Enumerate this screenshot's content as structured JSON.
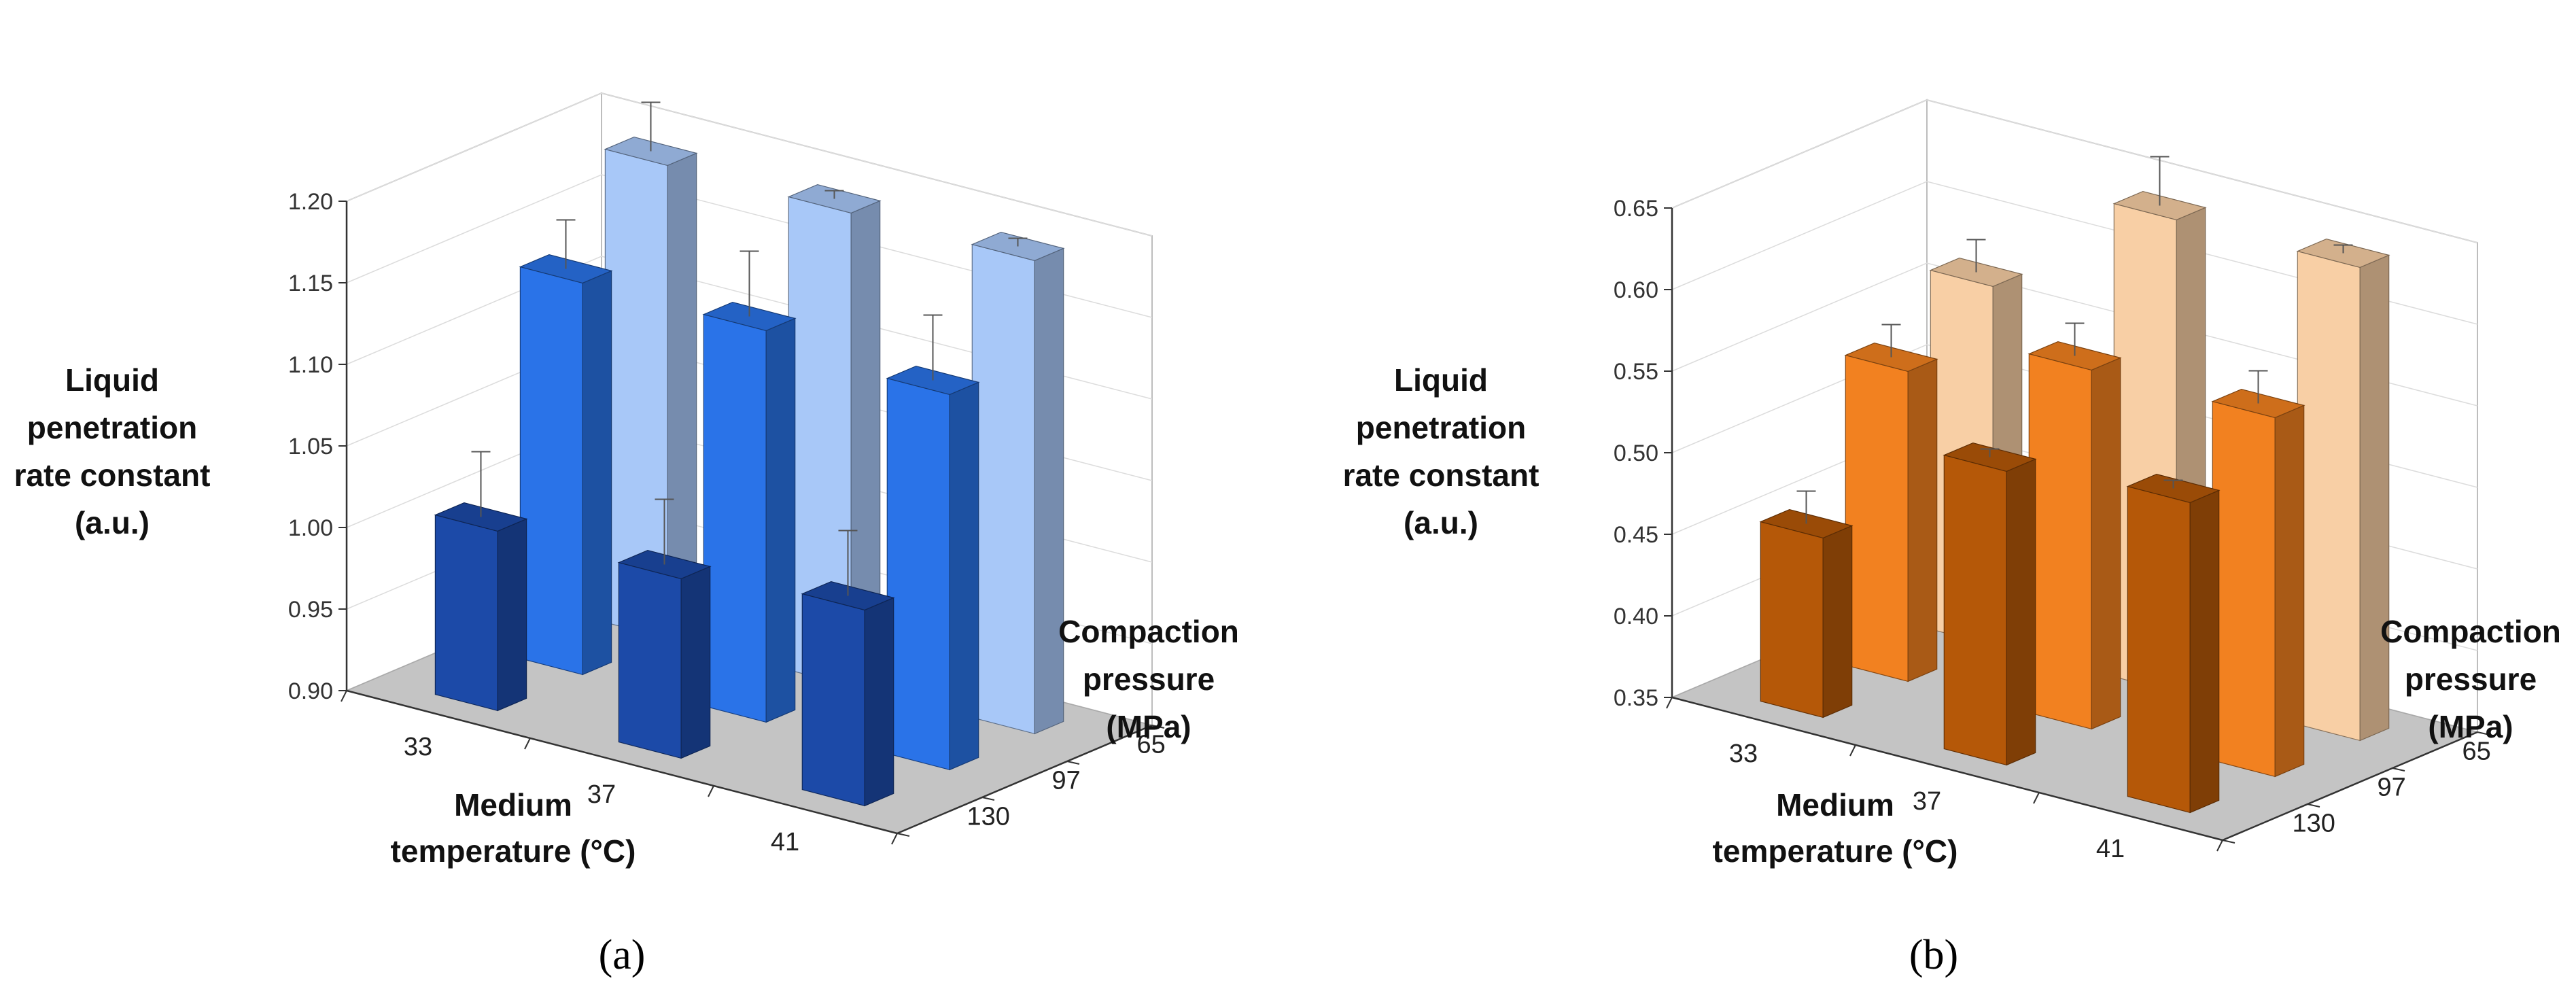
{
  "chart_data": [
    {
      "type": "bar3d",
      "panel_label": "(a)",
      "zlabel": [
        "Liquid",
        "penetration",
        "rate constant",
        "(a.u.)"
      ],
      "xlabel": [
        "Medium",
        "temperature (°C)"
      ],
      "ylabel": [
        "Compaction",
        "pressure",
        "(MPa)"
      ],
      "temperature_labels": [
        "33",
        "37",
        "41"
      ],
      "pressure_labels": [
        "65",
        "97",
        "130"
      ],
      "zlim": [
        0.9,
        1.2
      ],
      "zticks": [
        "0.90",
        "0.95",
        "1.00",
        "1.05",
        "1.10",
        "1.15",
        "1.20"
      ],
      "colors": [
        "#a8c8f8",
        "#2a73e8",
        "#1c4aa8"
      ],
      "series": [
        {
          "name": "65 MPa",
          "values": [
            1.19,
            1.19,
            1.19
          ],
          "errors": [
            0.03,
            0.005,
            0.005
          ]
        },
        {
          "name": "97 MPa",
          "values": [
            1.14,
            1.14,
            1.13
          ],
          "errors": [
            0.03,
            0.04,
            0.04
          ]
        },
        {
          "name": "130 MPa",
          "values": [
            1.01,
            1.01,
            1.02
          ],
          "errors": [
            0.04,
            0.04,
            0.04
          ]
        }
      ]
    },
    {
      "type": "bar3d",
      "panel_label": "(b)",
      "zlabel": [
        "Liquid",
        "penetration",
        "rate constant",
        "(a.u.)"
      ],
      "xlabel": [
        "Medium",
        "temperature (°C)"
      ],
      "ylabel": [
        "Compaction",
        "pressure",
        "(MPa)"
      ],
      "temperature_labels": [
        "33",
        "37",
        "41"
      ],
      "pressure_labels": [
        "65",
        "97",
        "130"
      ],
      "zlim": [
        0.35,
        0.65
      ],
      "zticks": [
        "0.35",
        "0.40",
        "0.45",
        "0.50",
        "0.55",
        "0.60",
        "0.65"
      ],
      "colors": [
        "#f8cfa5",
        "#f28120",
        "#b55808"
      ],
      "series": [
        {
          "name": "65 MPa",
          "values": [
            0.57,
            0.64,
            0.64
          ],
          "errors": [
            0.02,
            0.03,
            0.005
          ]
        },
        {
          "name": "97 MPa",
          "values": [
            0.54,
            0.57,
            0.57
          ],
          "errors": [
            0.02,
            0.02,
            0.02
          ]
        },
        {
          "name": "130 MPa",
          "values": [
            0.46,
            0.53,
            0.54
          ],
          "errors": [
            0.02,
            0.005,
            0.005
          ]
        }
      ]
    }
  ]
}
